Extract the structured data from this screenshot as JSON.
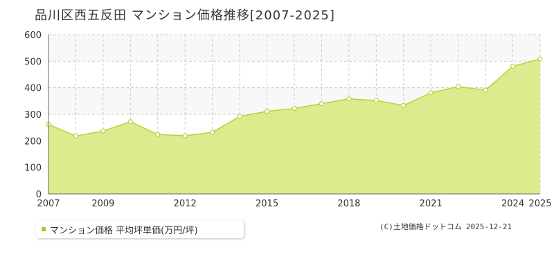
{
  "title": "品川区西五反田 マンション価格推移[2007-2025]",
  "legend": {
    "label": "マンション価格 平均坪単価(万円/坪)"
  },
  "credit": {
    "source": "(C)土地価格ドットコム",
    "date": "2025-12-21"
  },
  "colors": {
    "area_fill": "#dbeb8e",
    "line": "#b5d33e",
    "marker_fill": "#ffffff",
    "marker_stroke": "#b5d33e",
    "grid": "#cccccc",
    "band": "#f8f8f8"
  },
  "chart_data": {
    "type": "area",
    "title": "品川区西五反田 マンション価格推移[2007-2025]",
    "xlabel": "",
    "ylabel": "",
    "ylim": [
      0,
      600
    ],
    "xlim": [
      2007,
      2025
    ],
    "yticks": [
      0,
      100,
      200,
      300,
      400,
      500,
      600
    ],
    "xtick_labels": [
      "2007",
      "2009",
      "2012",
      "2015",
      "2018",
      "2021",
      "2024",
      "2025"
    ],
    "grid": true,
    "legend_position": "bottom-left",
    "series": [
      {
        "name": "マンション価格 平均坪単価(万円/坪)",
        "x": [
          2007,
          2008,
          2009,
          2010,
          2011,
          2012,
          2013,
          2014,
          2015,
          2016,
          2017,
          2018,
          2019,
          2020,
          2021,
          2022,
          2023,
          2024,
          2025
        ],
        "values": [
          262,
          218,
          237,
          272,
          224,
          219,
          232,
          292,
          311,
          322,
          340,
          358,
          352,
          333,
          381,
          404,
          391,
          481,
          508
        ]
      }
    ]
  }
}
